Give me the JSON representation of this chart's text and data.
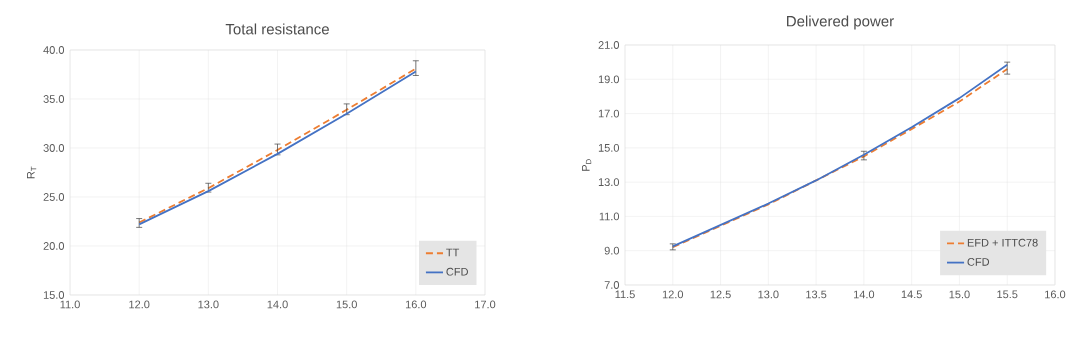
{
  "chart_data": [
    {
      "type": "line",
      "title": "Total resistance",
      "ylabel": "R$_{T}$",
      "x": [
        12,
        13,
        14,
        15,
        16
      ],
      "xlim": [
        11,
        17
      ],
      "xticks": [
        {
          "value": 11,
          "label": "11.0"
        },
        {
          "value": 12,
          "label": "12.0"
        },
        {
          "value": 13,
          "label": "13.0"
        },
        {
          "value": 14,
          "label": "14.0"
        },
        {
          "value": 15,
          "label": "15.0"
        },
        {
          "value": 16,
          "label": "16.0"
        },
        {
          "value": 17,
          "label": "17.0"
        }
      ],
      "ylim": [
        15,
        40
      ],
      "yticks": [
        {
          "value": 15,
          "label": "15.0"
        },
        {
          "value": 20,
          "label": "20.0"
        },
        {
          "value": 25,
          "label": "25.0"
        },
        {
          "value": 30,
          "label": "30.0"
        },
        {
          "value": 35,
          "label": "35.0"
        },
        {
          "value": 40,
          "label": "40.0"
        }
      ],
      "grid": true,
      "legend": "bottom right",
      "marker": "none",
      "series": [
        {
          "name": "TT",
          "color": "#ed7d31",
          "line_style": "dashed",
          "values": [
            22.4,
            25.9,
            29.8,
            33.9,
            38.1
          ],
          "errors": [
            [
              21.9,
              22.8
            ],
            [
              25.5,
              26.4
            ],
            [
              29.3,
              30.4
            ],
            [
              33.4,
              34.5
            ],
            [
              37.4,
              38.9
            ]
          ]
        },
        {
          "name": "CFD",
          "color": "#4472c4",
          "line_style": "solid",
          "values": [
            22.2,
            25.6,
            29.4,
            33.5,
            37.8
          ]
        }
      ]
    },
    {
      "type": "line",
      "title": "Delivered power",
      "ylabel": "P$_{D}$",
      "xlim": [
        11.5,
        16
      ],
      "xticks": [
        {
          "value": 11.5,
          "label": "11.5"
        },
        {
          "value": 12,
          "label": "12.0"
        },
        {
          "value": 12.5,
          "label": "12.5"
        },
        {
          "value": 13,
          "label": "13.0"
        },
        {
          "value": 13.5,
          "label": "13.5"
        },
        {
          "value": 14,
          "label": "14.0"
        },
        {
          "value": 14.5,
          "label": "14.5"
        },
        {
          "value": 15,
          "label": "15.0"
        },
        {
          "value": 15.5,
          "label": "15.5"
        },
        {
          "value": 16,
          "label": "16.0"
        }
      ],
      "ylim": [
        7,
        21
      ],
      "yticks": [
        {
          "value": 7,
          "label": "7.0"
        },
        {
          "value": 9,
          "label": "9.0"
        },
        {
          "value": 11,
          "label": "11.0"
        },
        {
          "value": 13,
          "label": "13.0"
        },
        {
          "value": 15,
          "label": "15.0"
        },
        {
          "value": 17,
          "label": "17.0"
        },
        {
          "value": 19,
          "label": "19.0"
        },
        {
          "value": 21,
          "label": "21.0"
        }
      ],
      "grid": true,
      "legend": "bottom right",
      "marker": "none",
      "series": [
        {
          "name": "EFD + ITTC78",
          "color": "#ed7d31",
          "line_style": "dashed",
          "x": [
            12,
            13,
            14,
            15,
            15.5
          ],
          "values": [
            9.2,
            11.7,
            14.5,
            17.7,
            19.6
          ],
          "errors": [
            [
              9.05,
              9.4
            ],
            null,
            [
              14.3,
              14.8
            ],
            null,
            [
              19.3,
              20.0
            ]
          ]
        },
        {
          "name": "CFD",
          "color": "#4472c4",
          "line_style": "solid",
          "x": [
            12,
            13,
            13.5,
            14,
            14.5,
            15,
            15.5
          ],
          "values": [
            9.25,
            11.75,
            13.1,
            14.6,
            16.2,
            17.9,
            19.85
          ]
        }
      ]
    }
  ]
}
